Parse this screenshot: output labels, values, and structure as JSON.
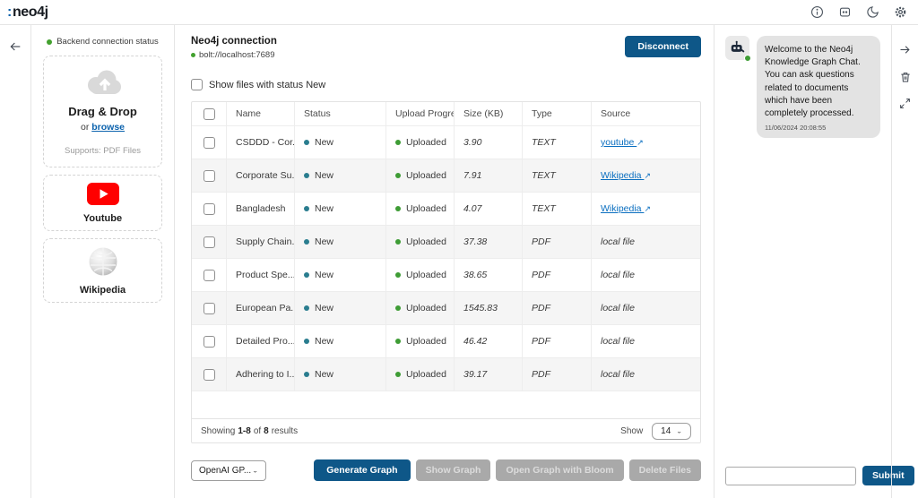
{
  "header": {
    "logo_prefix": ":",
    "logo_text": "neo4j"
  },
  "icons": {
    "back": "back-arrow",
    "external_link": "↗",
    "chevron_down": "⌄",
    "topbar": [
      "info-icon",
      "chat-widget-icon",
      "dark-mode-moon-icon",
      "settings-gear-icon"
    ],
    "right_rail": [
      "arrow-right-icon",
      "trash-icon",
      "expand-icon"
    ]
  },
  "colors": {
    "primary_blue": "#0e5788",
    "link_blue": "#0b6fc0",
    "status_green": "#43a12f",
    "new_dot_teal": "#2a7d8f",
    "uploaded_dot_green": "#3e9c35",
    "youtube_red": "#ff0000"
  },
  "sidebar": {
    "backend_status": "Backend connection status",
    "dropzone": {
      "title": "Drag & Drop",
      "or": "or",
      "browse": "browse",
      "supports": "Supports: PDF Files"
    },
    "youtube_label": "Youtube",
    "wikipedia_label": "Wikipedia"
  },
  "connection": {
    "title": "Neo4j connection",
    "uri": "bolt://localhost:7689",
    "disconnect_label": "Disconnect"
  },
  "filter": {
    "label": "Show files with status New",
    "checked": false
  },
  "table": {
    "columns": [
      "Name",
      "Status",
      "Upload Progress",
      "Size (KB)",
      "Type",
      "Source"
    ],
    "rows": [
      {
        "name": "CSDDD - Cor...",
        "status": "New",
        "upload": "Uploaded",
        "size": "3.90",
        "type": "TEXT",
        "source": "youtube",
        "source_kind": "link"
      },
      {
        "name": "Corporate Su...",
        "status": "New",
        "upload": "Uploaded",
        "size": "7.91",
        "type": "TEXT",
        "source": "Wikipedia",
        "source_kind": "link"
      },
      {
        "name": "Bangladesh",
        "status": "New",
        "upload": "Uploaded",
        "size": "4.07",
        "type": "TEXT",
        "source": "Wikipedia",
        "source_kind": "link"
      },
      {
        "name": "Supply Chain...",
        "status": "New",
        "upload": "Uploaded",
        "size": "37.38",
        "type": "PDF",
        "source": "local file",
        "source_kind": "text"
      },
      {
        "name": "Product Spe...",
        "status": "New",
        "upload": "Uploaded",
        "size": "38.65",
        "type": "PDF",
        "source": "local file",
        "source_kind": "text"
      },
      {
        "name": "European Pa...",
        "status": "New",
        "upload": "Uploaded",
        "size": "1545.83",
        "type": "PDF",
        "source": "local file",
        "source_kind": "text"
      },
      {
        "name": "Detailed Pro...",
        "status": "New",
        "upload": "Uploaded",
        "size": "46.42",
        "type": "PDF",
        "source": "local file",
        "source_kind": "text"
      },
      {
        "name": "Adhering to I...",
        "status": "New",
        "upload": "Uploaded",
        "size": "39.17",
        "type": "PDF",
        "source": "local file",
        "source_kind": "text"
      }
    ],
    "footer": {
      "showing": "Showing",
      "range": "1-8",
      "of": "of",
      "total": "8",
      "results": "results",
      "show_label": "Show",
      "page_size": "14"
    }
  },
  "actions": {
    "model_select_value": "OpenAI GP...",
    "generate_label": "Generate Graph",
    "show_graph_label": "Show Graph",
    "bloom_label": "Open Graph with Bloom",
    "delete_label": "Delete Files"
  },
  "chat": {
    "message": "Welcome to the Neo4j Knowledge Graph Chat. You can ask questions related to documents which have been completely processed.",
    "timestamp": "11/06/2024 20:08:55",
    "input_value": "",
    "submit_label": "Submit"
  }
}
